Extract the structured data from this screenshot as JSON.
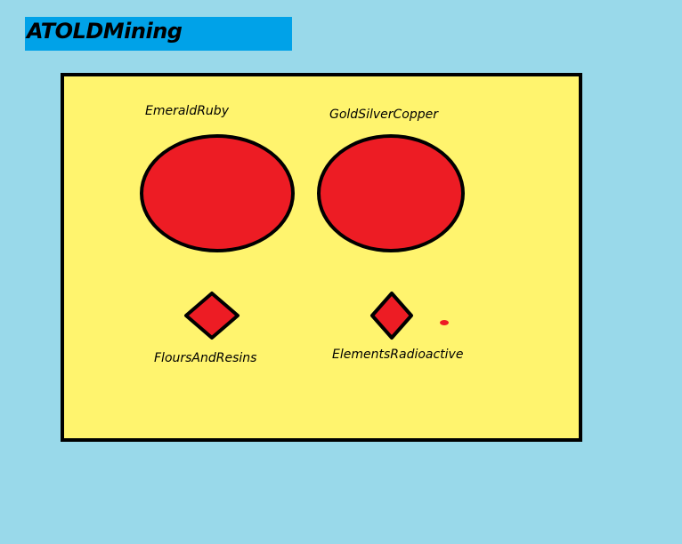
{
  "header": {
    "title": "ATOLDMining"
  },
  "categories": [
    {
      "label": "EmeraldRuby",
      "shape": "oval"
    },
    {
      "label": "GoldSilverCopper",
      "shape": "oval"
    },
    {
      "label": "FloursAndResins",
      "shape": "diamond"
    },
    {
      "label": "ElementsRadioactive",
      "shape": "diamond"
    }
  ],
  "colors": {
    "background": "#99d9ea",
    "title_bar": "#00a2e8",
    "board": "#fff46e",
    "shape_fill": "#ed1c24",
    "outline": "#000000"
  }
}
